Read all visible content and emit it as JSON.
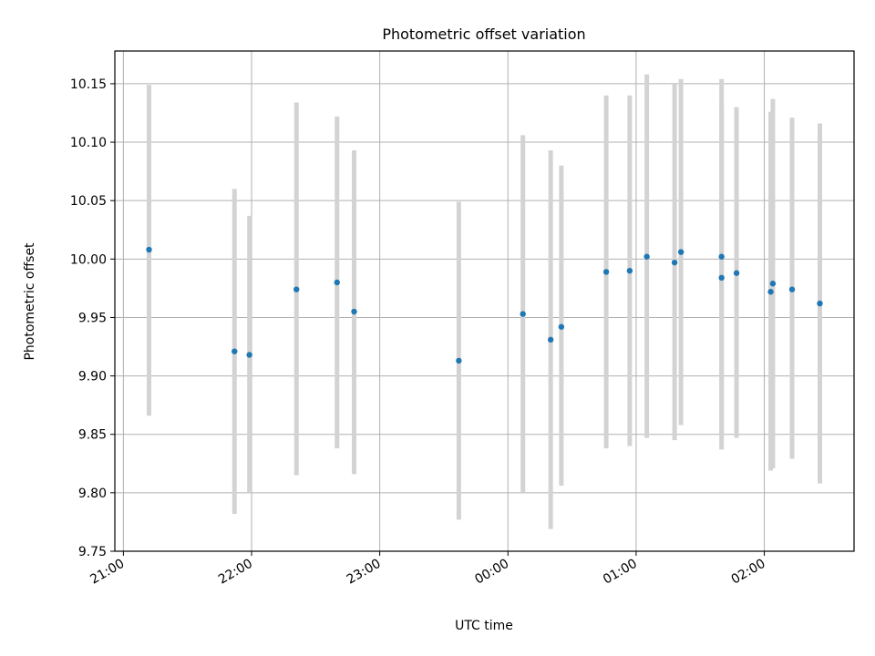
{
  "chart_data": {
    "type": "scatter",
    "title": "Photometric offset variation",
    "xlabel": "UTC time",
    "ylabel": "Photometric offset",
    "x_ticks": [
      "21:00",
      "22:00",
      "23:00",
      "00:00",
      "01:00",
      "02:00"
    ],
    "y_ticks": [
      "9.75",
      "9.80",
      "9.85",
      "9.90",
      "9.95",
      "10.00",
      "10.05",
      "10.10",
      "10.15"
    ],
    "xlim": [
      "20:56",
      "02:42"
    ],
    "ylim": [
      9.75,
      10.178
    ],
    "grid": true,
    "error_bar_color": "#d3d3d3",
    "marker_color": "#1f77b4",
    "points": [
      {
        "x": "21:12",
        "y": 10.008,
        "err_low": 9.866,
        "err_high": 10.149
      },
      {
        "x": "21:52",
        "y": 9.921,
        "err_low": 9.782,
        "err_high": 10.06
      },
      {
        "x": "21:59",
        "y": 9.918,
        "err_low": 9.8,
        "err_high": 10.037
      },
      {
        "x": "22:21",
        "y": 9.974,
        "err_low": 9.815,
        "err_high": 10.134
      },
      {
        "x": "22:40",
        "y": 9.98,
        "err_low": 9.838,
        "err_high": 10.122
      },
      {
        "x": "22:48",
        "y": 9.955,
        "err_low": 9.816,
        "err_high": 10.093
      },
      {
        "x": "23:37",
        "y": 9.913,
        "err_low": 9.777,
        "err_high": 10.049
      },
      {
        "x": "00:07",
        "y": 9.953,
        "err_low": 9.8,
        "err_high": 10.106
      },
      {
        "x": "00:20",
        "y": 9.931,
        "err_low": 9.769,
        "err_high": 10.093
      },
      {
        "x": "00:25",
        "y": 9.942,
        "err_low": 9.806,
        "err_high": 10.08
      },
      {
        "x": "00:46",
        "y": 9.989,
        "err_low": 9.838,
        "err_high": 10.14
      },
      {
        "x": "00:57",
        "y": 9.99,
        "err_low": 9.84,
        "err_high": 10.14
      },
      {
        "x": "01:05",
        "y": 10.002,
        "err_low": 9.847,
        "err_high": 10.158
      },
      {
        "x": "01:18",
        "y": 9.997,
        "err_low": 9.845,
        "err_high": 10.15
      },
      {
        "x": "01:21",
        "y": 10.006,
        "err_low": 9.858,
        "err_high": 10.154
      },
      {
        "x": "01:40",
        "y": 10.002,
        "err_low": 9.85,
        "err_high": 10.154
      },
      {
        "x": "01:40",
        "y": 9.984,
        "err_low": 9.837,
        "err_high": 10.131
      },
      {
        "x": "01:47",
        "y": 9.988,
        "err_low": 9.847,
        "err_high": 10.13
      },
      {
        "x": "02:03",
        "y": 9.972,
        "err_low": 9.819,
        "err_high": 10.126
      },
      {
        "x": "02:04",
        "y": 9.979,
        "err_low": 9.821,
        "err_high": 10.137
      },
      {
        "x": "02:13",
        "y": 9.974,
        "err_low": 9.829,
        "err_high": 10.121
      },
      {
        "x": "02:26",
        "y": 9.962,
        "err_low": 9.808,
        "err_high": 10.116
      }
    ]
  }
}
